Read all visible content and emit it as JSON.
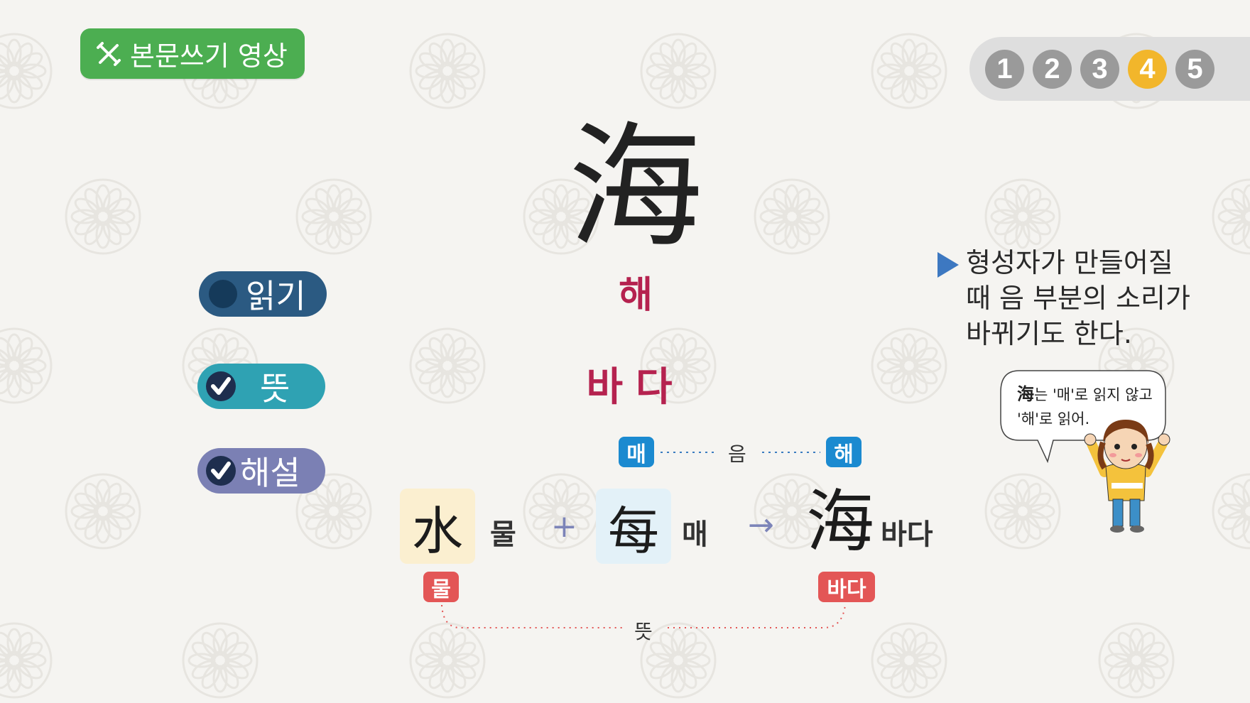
{
  "header": {
    "video_button_label": "본문쓰기 영상",
    "pages": [
      "1",
      "2",
      "3",
      "4",
      "5"
    ],
    "active_page": "4"
  },
  "character": {
    "hanja": "海",
    "reading": "해",
    "meaning": "바다"
  },
  "toggles": {
    "read_label": "읽기",
    "meaning_label": "뜻",
    "explanation_label": "해설"
  },
  "note": {
    "text": "형성자가 만들어질 때 음 부분의 소리가 바뀌기도 한다."
  },
  "bubble": {
    "hanja": "海",
    "line1": "는 '매'로 읽지 않고",
    "line2": "'해'로 읽어."
  },
  "formation": {
    "sound_tag_left": "매",
    "sound_label": "음",
    "sound_tag_right": "해",
    "part1_hanja": "水",
    "part1_word": "물",
    "plus": "+",
    "part2_hanja": "每",
    "part2_word": "매",
    "arrow": "→",
    "result_hanja": "海",
    "result_word": "바다",
    "meaning_tag_left": "물",
    "meaning_tag_right": "바다",
    "meaning_label": "뜻"
  },
  "colors": {
    "video_button": "#4cae51",
    "active_page": "#f2b62b",
    "reading_text": "#b5224f",
    "read_toggle": "#2b5a82",
    "meaning_toggle": "#2fa2b3",
    "explanation_toggle": "#7b80b4",
    "sound_tag": "#1b8ad0",
    "meaning_tag": "#e35656",
    "note_arrow": "#3d78c1"
  },
  "icons": {
    "video_button": "pencil-ruler-icon",
    "check": "check-icon",
    "note_bullet": "triangle-right-icon"
  }
}
